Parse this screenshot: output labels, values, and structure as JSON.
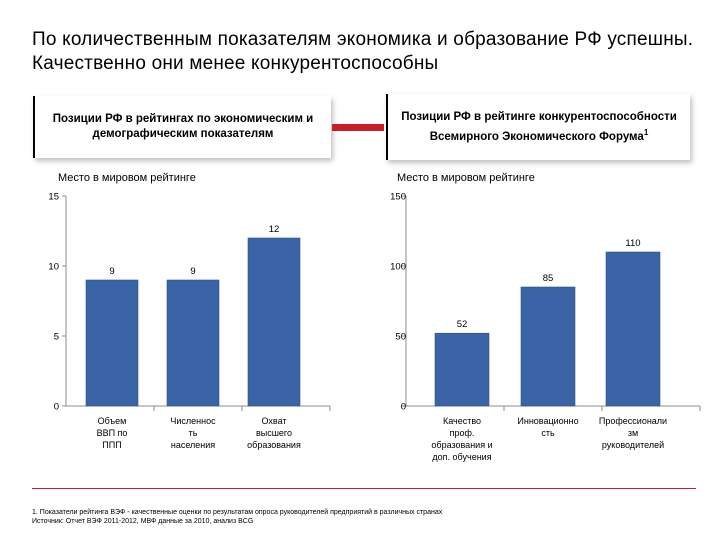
{
  "title": "По количественным показателям экономика и образование РФ успешны. Качественно они менее конкурентоспособны",
  "panels": {
    "left": "Позиции РФ в рейтингах по экономическим и демографическим показателям",
    "right": "Позиции РФ в рейтинге конкурентоспособности Всемирного Экономического Форума",
    "right_sup": "1"
  },
  "chart_data": [
    {
      "type": "bar",
      "ylabel": "Место в мировом рейтинге",
      "ylim": [
        0,
        15
      ],
      "yticks": [
        "0",
        "5",
        "10",
        "15"
      ],
      "categories": [
        "Объем ВВП по ППП",
        "Численность населения",
        "Охват высшего образования"
      ],
      "category_lines": [
        [
          "Объем",
          "ВВП по",
          "ППП"
        ],
        [
          "Численнос",
          "ть",
          "населения"
        ],
        [
          "Охват",
          "высшего",
          "образования"
        ]
      ],
      "values": [
        9,
        9,
        12
      ],
      "value_labels": [
        "9",
        "9",
        "12"
      ],
      "color": "#3a64a6"
    },
    {
      "type": "bar",
      "ylabel": "Место в мировом рейтинге",
      "ylim": [
        0,
        150
      ],
      "yticks": [
        "0",
        "50",
        "100",
        "150"
      ],
      "categories": [
        "Качество проф. образования и доп. обучения",
        "Инновационность",
        "Профессионализм руководителей"
      ],
      "category_lines": [
        [
          "Качество",
          "проф.",
          "образования и",
          "доп. обучения"
        ],
        [
          "Инновационно",
          "сть"
        ],
        [
          "Профессионали",
          "зм",
          "руководителей"
        ]
      ],
      "values": [
        52,
        85,
        110
      ],
      "value_labels": [
        "52",
        "85",
        "110"
      ],
      "color": "#3a64a6"
    }
  ],
  "footnote": {
    "line1": "1. Показатели рейтинга ВЭФ - качественные оценки по результатам опроса руководителей предприятий в различных странах",
    "line2": "Источник: Отчет ВЭФ 2011-2012, МВФ данные за 2010, анализ BCG"
  },
  "colors": {
    "accent": "#c81e2a",
    "bar": "#3a64a6"
  }
}
